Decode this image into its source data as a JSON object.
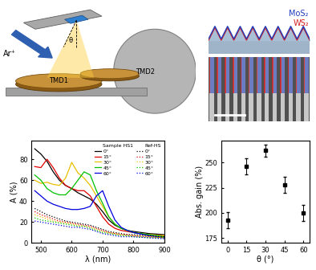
{
  "diagram": {
    "ion_label": "Ar⁺",
    "angle_label": "θ",
    "targets": [
      "TMD1",
      "TMD2"
    ],
    "layers": [
      {
        "label": "MoS₂",
        "color": "#1f3fbf"
      },
      {
        "label": "WS₂",
        "color": "#d62020"
      }
    ]
  },
  "chart_data": [
    {
      "type": "line",
      "x_label": "λ (nm)",
      "y_label": "A (%)",
      "xlim": [
        470,
        900
      ],
      "xticks": [
        500,
        600,
        700,
        800,
        900
      ],
      "ylim": [
        0,
        98
      ],
      "yticks": [
        0,
        20,
        40,
        60,
        80
      ],
      "legend": "upper right",
      "x": [
        480,
        500,
        520,
        540,
        560,
        580,
        600,
        620,
        640,
        660,
        680,
        700,
        720,
        740,
        760,
        780,
        800,
        850,
        900
      ],
      "groups": [
        {
          "title": "Sample HS1",
          "line_style": "solid",
          "series": [
            {
              "name": "0°",
              "color": "#000000",
              "values": [
                90,
                85,
                78,
                68,
                60,
                55,
                52,
                48,
                45,
                42,
                37,
                30,
                22,
                17,
                14,
                12,
                11,
                9,
                8
              ]
            },
            {
              "name": "15°",
              "color": "#e00000",
              "values": [
                73,
                72,
                80,
                72,
                62,
                55,
                52,
                50,
                50,
                45,
                35,
                25,
                18,
                14,
                12,
                11,
                10,
                8,
                7
              ]
            },
            {
              "name": "30°",
              "color": "#e8c000",
              "values": [
                60,
                57,
                58,
                56,
                55,
                62,
                77,
                67,
                62,
                55,
                45,
                35,
                25,
                18,
                14,
                12,
                10,
                8,
                7
              ]
            },
            {
              "name": "45°",
              "color": "#00c000",
              "values": [
                65,
                60,
                52,
                48,
                46,
                46,
                52,
                60,
                68,
                65,
                50,
                38,
                25,
                18,
                14,
                12,
                10,
                8,
                6
              ]
            },
            {
              "name": "60°",
              "color": "#0000e0",
              "values": [
                50,
                45,
                40,
                37,
                35,
                33,
                32,
                32,
                33,
                35,
                45,
                50,
                35,
                22,
                15,
                12,
                10,
                7,
                5
              ]
            }
          ]
        },
        {
          "title": "Ref-HS",
          "line_style": "dotted",
          "series": [
            {
              "name": "0°",
              "color": "#000000",
              "values": [
                33,
                30,
                27,
                25,
                23,
                21,
                20,
                19,
                18,
                17,
                15,
                13,
                11,
                10,
                9,
                8,
                8,
                7,
                6
              ]
            },
            {
              "name": "15°",
              "color": "#e00000",
              "values": [
                30,
                27,
                25,
                23,
                21,
                20,
                19,
                18,
                17,
                16,
                14,
                12,
                10,
                9,
                8,
                8,
                7,
                6,
                5
              ]
            },
            {
              "name": "30°",
              "color": "#e8c000",
              "values": [
                27,
                25,
                23,
                21,
                20,
                19,
                18,
                17,
                16,
                15,
                13,
                11,
                10,
                9,
                8,
                7,
                7,
                6,
                5
              ]
            },
            {
              "name": "45°",
              "color": "#00c000",
              "values": [
                24,
                22,
                21,
                20,
                19,
                18,
                17,
                16,
                16,
                14,
                12,
                10,
                9,
                8,
                7,
                7,
                6,
                5,
                5
              ]
            },
            {
              "name": "60°",
              "color": "#0000e0",
              "values": [
                21,
                20,
                19,
                18,
                17,
                16,
                15,
                15,
                14,
                13,
                11,
                9,
                8,
                7,
                6,
                6,
                6,
                5,
                4
              ]
            }
          ]
        }
      ]
    },
    {
      "type": "scatter",
      "x_label": "θ (°)",
      "y_label": "Abs. gain (%)",
      "x": [
        0,
        15,
        30,
        45,
        60
      ],
      "values": [
        193,
        246,
        262,
        228,
        200
      ],
      "errors": [
        8,
        8,
        6,
        8,
        8
      ],
      "color": "#000000",
      "marker": "square",
      "xlim": [
        -5,
        65
      ],
      "xticks": [
        0,
        15,
        30,
        45,
        60
      ],
      "ylim": [
        170,
        272
      ],
      "yticks": [
        175,
        200,
        225,
        250
      ]
    }
  ]
}
